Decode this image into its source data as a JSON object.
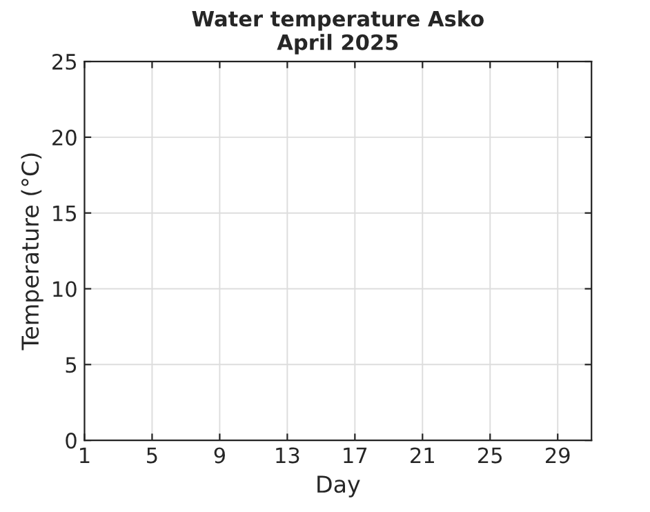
{
  "chart_data": {
    "type": "line",
    "title": "Water temperature Asko\nApril 2025",
    "xlabel": "Day",
    "ylabel": "Temperature (°C)",
    "xlim": [
      1,
      31
    ],
    "xticks": [
      1,
      5,
      9,
      13,
      17,
      21,
      25,
      29
    ],
    "ylim": [
      0,
      25
    ],
    "yticks": [
      0,
      5,
      10,
      15,
      20,
      25
    ],
    "grid": true,
    "legend": false
  }
}
